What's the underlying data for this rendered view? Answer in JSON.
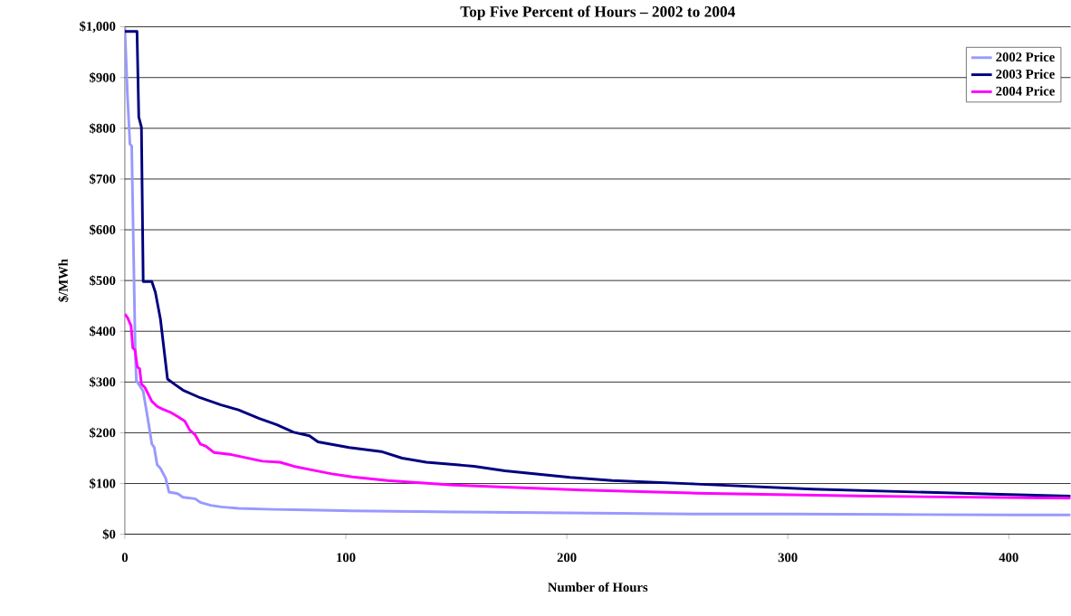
{
  "chart_data": {
    "type": "line",
    "title": "Top Five Percent of Hours – 2002 to 2004",
    "xlabel": "Number of Hours",
    "ylabel": "$/MWh",
    "xlim": [
      0,
      428
    ],
    "xticks": [
      0,
      100,
      200,
      300,
      400
    ],
    "ylim": [
      0,
      1000
    ],
    "yticks": [
      {
        "value": 0,
        "label": "$0"
      },
      {
        "value": 100,
        "label": "$100"
      },
      {
        "value": 200,
        "label": "$200"
      },
      {
        "value": 300,
        "label": "$300"
      },
      {
        "value": 400,
        "label": "$400"
      },
      {
        "value": 500,
        "label": "$500"
      },
      {
        "value": 600,
        "label": "$600"
      },
      {
        "value": 700,
        "label": "$700"
      },
      {
        "value": 800,
        "label": "$800"
      },
      {
        "value": 900,
        "label": "$900"
      },
      {
        "value": 1000,
        "label": "$1,000"
      }
    ],
    "grid": "y",
    "legend": "top right",
    "marker": "none",
    "line_style": "solid",
    "series": [
      {
        "name": "2002 Price",
        "color": "#9999ff",
        "x": [
          0,
          1.2,
          2.3,
          3.1,
          3.9,
          4.7,
          5.2,
          8.3,
          10.6,
          12.2,
          13.3,
          14.6,
          16.1,
          18.5,
          20,
          23.9,
          26.3,
          31.8,
          34.1,
          38.8,
          43.5,
          51.4,
          67,
          82.7,
          103,
          150,
          200,
          257,
          300,
          350,
          400,
          428
        ],
        "values": [
          998,
          863,
          769,
          765,
          566,
          363,
          303,
          282,
          222,
          178,
          171,
          137,
          130,
          110,
          83,
          80,
          73,
          70,
          63,
          57,
          54,
          51,
          49,
          48,
          46,
          44,
          42,
          40,
          40,
          39,
          38,
          38
        ]
      },
      {
        "name": "2003 Price",
        "color": "#000080",
        "x": [
          0,
          5.5,
          6.3,
          7.5,
          8.3,
          12.2,
          13.8,
          16.1,
          19.3,
          22.4,
          26.3,
          34.1,
          43.5,
          51.4,
          60.8,
          68.6,
          76.4,
          83.5,
          87.4,
          101.5,
          116,
          125.5,
          136.4,
          158,
          172,
          201.5,
          220.5,
          258.5,
          311,
          392.5,
          428
        ],
        "values": [
          991,
          991,
          822,
          802,
          498,
          498,
          477,
          424,
          306,
          296,
          284,
          269,
          255,
          245,
          228,
          216,
          201,
          194,
          182,
          171,
          163,
          150,
          142,
          134,
          125,
          112,
          106,
          99,
          89,
          79,
          75
        ]
      },
      {
        "name": "2004 Price",
        "color": "#ff00ff",
        "x": [
          0,
          1.2,
          2.8,
          3.6,
          4.6,
          5.6,
          6.7,
          7.5,
          9.1,
          12.2,
          14.6,
          16.9,
          20.8,
          23.9,
          27.1,
          29.4,
          31.8,
          34.1,
          36.5,
          40.4,
          48.2,
          54.5,
          62.3,
          70.2,
          76.4,
          84.3,
          93.7,
          103,
          118.8,
          148.7,
          172,
          207,
          258.5,
          338,
          428
        ],
        "values": [
          434,
          427,
          411,
          367,
          363,
          330,
          326,
          296,
          289,
          262,
          252,
          247,
          240,
          232,
          223,
          205,
          196,
          178,
          174,
          161,
          157,
          151,
          144,
          142,
          134,
          127,
          119,
          113,
          106,
          97,
          93,
          87,
          81,
          75,
          71
        ]
      }
    ]
  }
}
